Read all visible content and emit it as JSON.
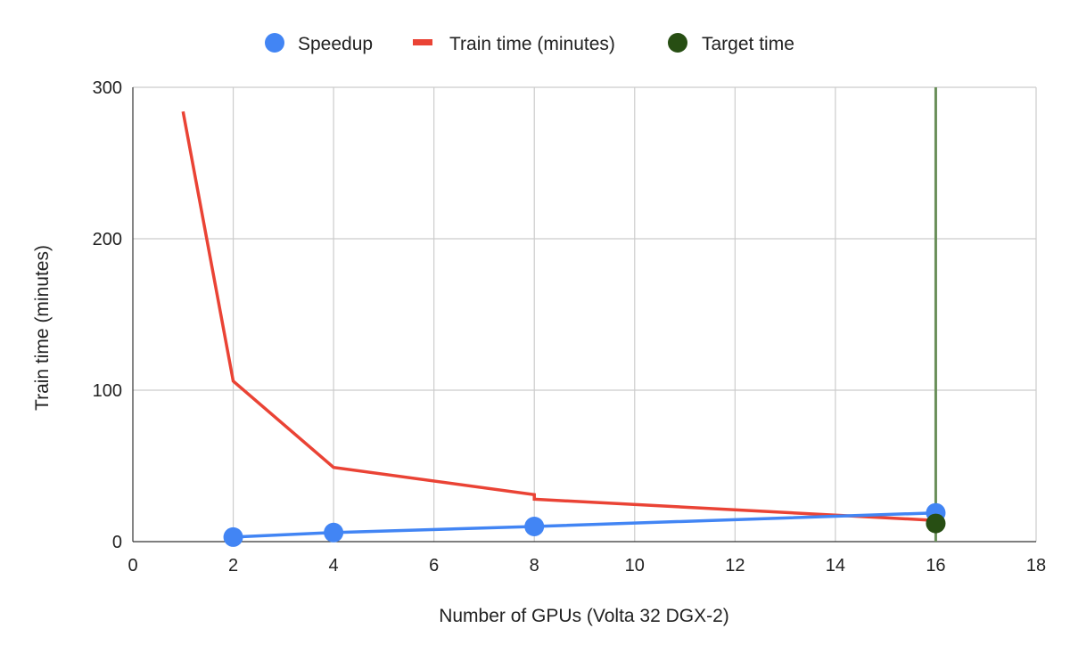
{
  "chart_data": {
    "type": "line",
    "title": "",
    "xlabel": "Number of GPUs (Volta 32 DGX-2)",
    "ylabel": "Train time (minutes)",
    "xlim": [
      0,
      18
    ],
    "ylim": [
      0,
      300
    ],
    "xticks": [
      "0",
      "2",
      "4",
      "6",
      "8",
      "10",
      "12",
      "14",
      "16",
      "18"
    ],
    "yticks": [
      "0",
      "100",
      "200",
      "300"
    ],
    "grid": true,
    "legend_position": "top",
    "series": [
      {
        "name": "Speedup",
        "kind": "line+markers",
        "color": "#4285f4",
        "x": [
          2,
          4,
          8,
          16
        ],
        "y": [
          3,
          6,
          10,
          19
        ]
      },
      {
        "name": "Train time (minutes)",
        "kind": "line",
        "color": "#ea4335",
        "x": [
          1,
          2,
          4,
          8,
          8,
          16
        ],
        "y": [
          284,
          106,
          49,
          31,
          28,
          14
        ]
      },
      {
        "name": "Target time",
        "kind": "marker",
        "color": "#274e13",
        "x": [
          16
        ],
        "y": [
          12
        ]
      }
    ],
    "reference_line": {
      "axis": "x",
      "value": 16,
      "color": "#6a8f5a"
    }
  }
}
